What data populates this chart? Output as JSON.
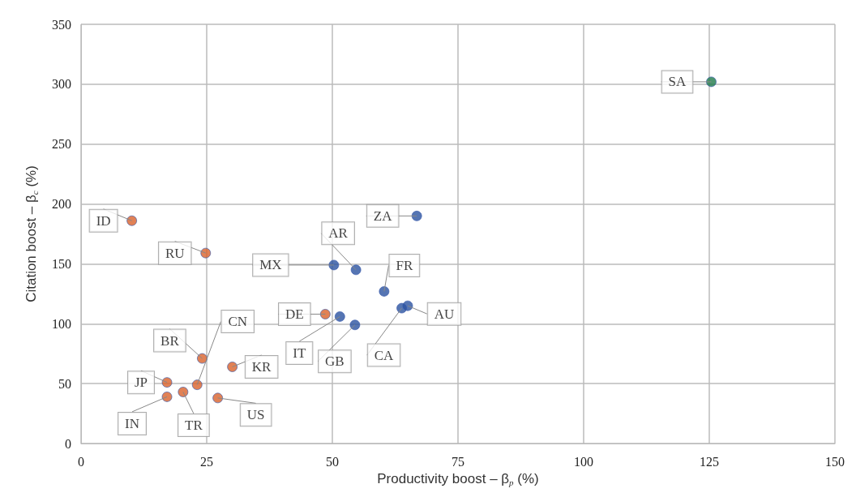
{
  "chart_data": {
    "type": "scatter",
    "xlabel": "Productivity boost – β$_{p}$ (%)",
    "ylabel": "Citation boost – β$_{c}$ (%)",
    "xlim": [
      0,
      150
    ],
    "xticks": [
      0,
      25,
      50,
      75,
      100,
      125,
      150
    ],
    "ylim": [
      0,
      350
    ],
    "yticks": [
      0,
      50,
      100,
      150,
      200,
      250,
      300,
      350
    ],
    "grid": true,
    "marker": "circle",
    "series": [
      {
        "color": "#d9622b",
        "x": [
          10.1,
          24.8,
          24.1,
          23.1,
          17.1,
          17.1,
          20.3,
          30.1,
          27.2,
          48.6
        ],
        "values": [
          186,
          159,
          71,
          49,
          51,
          39,
          43,
          64,
          38,
          108
        ]
      },
      {
        "color": "#2a52a0",
        "x": [
          50.3,
          54.7,
          66.8,
          60.3,
          65.0,
          63.8,
          51.5,
          54.5
        ],
        "values": [
          149,
          145,
          190,
          127,
          115,
          113,
          106,
          99
        ]
      },
      {
        "color": "#1f7a4a",
        "x": [
          125.4
        ],
        "values": [
          302
        ]
      }
    ],
    "annotations": [
      {
        "text": "SA",
        "x": 125.4,
        "y": 302
      },
      {
        "text": "ZA",
        "x": 66.8,
        "y": 190
      },
      {
        "text": "AR",
        "x": 54.7,
        "y": 145
      },
      {
        "text": "MX",
        "x": 50.3,
        "y": 149
      },
      {
        "text": "FR",
        "x": 60.3,
        "y": 127
      },
      {
        "text": "AU",
        "x": 65.0,
        "y": 115
      },
      {
        "text": "CA",
        "x": 63.8,
        "y": 113
      },
      {
        "text": "DE",
        "x": 48.6,
        "y": 108
      },
      {
        "text": "IT",
        "x": 51.5,
        "y": 106
      },
      {
        "text": "GB",
        "x": 54.5,
        "y": 99
      },
      {
        "text": "ID",
        "x": 10.1,
        "y": 186
      },
      {
        "text": "RU",
        "x": 24.8,
        "y": 159
      },
      {
        "text": "CN",
        "x": 23.1,
        "y": 49
      },
      {
        "text": "BR",
        "x": 24.1,
        "y": 71
      },
      {
        "text": "KR",
        "x": 30.1,
        "y": 64
      },
      {
        "text": "JP",
        "x": 17.1,
        "y": 51
      },
      {
        "text": "IN",
        "x": 17.1,
        "y": 39
      },
      {
        "text": "TR",
        "x": 20.3,
        "y": 43
      },
      {
        "text": "US",
        "x": 27.2,
        "y": 38
      }
    ]
  }
}
